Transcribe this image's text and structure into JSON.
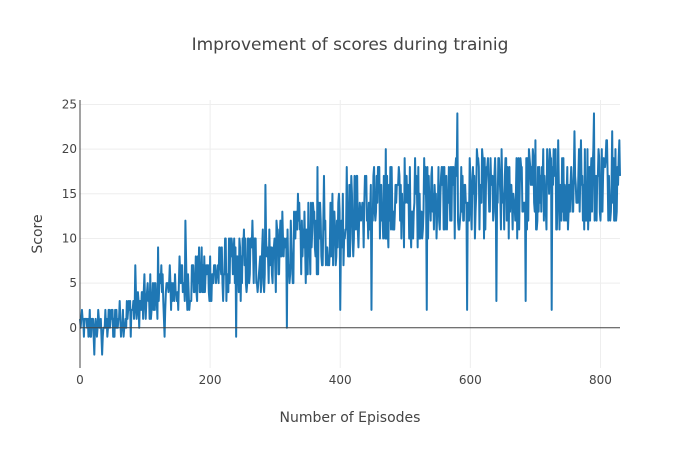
{
  "chart_data": {
    "type": "line",
    "title": "Improvement of scores during trainig",
    "xlabel": "Number of Episodes",
    "ylabel": "Score",
    "xlim": [
      0,
      830
    ],
    "ylim": [
      -4.5,
      25.5
    ],
    "x_ticks": [
      0,
      200,
      400,
      600,
      800
    ],
    "y_ticks": [
      0,
      5,
      10,
      15,
      20,
      25
    ],
    "grid": true,
    "zero_line": true,
    "series": [
      {
        "name": "score",
        "color": "#1f77b4",
        "anchors": [
          [
            0,
            0.3
          ],
          [
            25,
            0.1
          ],
          [
            50,
            0.6
          ],
          [
            75,
            1.6
          ],
          [
            100,
            2.8
          ],
          [
            125,
            3.7
          ],
          [
            150,
            4.6
          ],
          [
            175,
            5.4
          ],
          [
            200,
            5.9
          ],
          [
            225,
            6.4
          ],
          [
            250,
            7.0
          ],
          [
            275,
            7.6
          ],
          [
            300,
            8.1
          ],
          [
            325,
            8.9
          ],
          [
            350,
            9.6
          ],
          [
            375,
            10.8
          ],
          [
            400,
            11.9
          ],
          [
            425,
            12.8
          ],
          [
            450,
            13.4
          ],
          [
            475,
            13.9
          ],
          [
            500,
            14.1
          ],
          [
            525,
            14.3
          ],
          [
            550,
            14.4
          ],
          [
            575,
            14.5
          ],
          [
            600,
            14.6
          ],
          [
            625,
            14.7
          ],
          [
            650,
            14.8
          ],
          [
            675,
            15.0
          ],
          [
            700,
            15.2
          ],
          [
            725,
            15.5
          ],
          [
            750,
            15.8
          ],
          [
            775,
            16.1
          ],
          [
            800,
            16.5
          ],
          [
            830,
            17.0
          ]
        ],
        "noise_amplitude": [
          [
            0,
            1.3
          ],
          [
            100,
            2.8
          ],
          [
            200,
            3.6
          ],
          [
            300,
            4.3
          ],
          [
            400,
            4.8
          ],
          [
            830,
            5.2
          ]
        ],
        "peaks": [
          [
            15,
            2
          ],
          [
            22,
            -3
          ],
          [
            34,
            -3
          ],
          [
            50,
            2
          ],
          [
            85,
            7
          ],
          [
            120,
            9
          ],
          [
            130,
            -1
          ],
          [
            162,
            12
          ],
          [
            240,
            -1
          ],
          [
            265,
            12
          ],
          [
            285,
            16
          ],
          [
            318,
            0
          ],
          [
            335,
            15
          ],
          [
            365,
            18
          ],
          [
            375,
            17
          ],
          [
            395,
            12
          ],
          [
            400,
            2
          ],
          [
            410,
            18
          ],
          [
            425,
            17
          ],
          [
            448,
            2
          ],
          [
            470,
            20
          ],
          [
            515,
            19
          ],
          [
            533,
            2
          ],
          [
            580,
            24
          ],
          [
            595,
            2
          ],
          [
            612,
            19
          ],
          [
            625,
            18
          ],
          [
            640,
            3
          ],
          [
            660,
            18
          ],
          [
            685,
            3
          ],
          [
            690,
            20
          ],
          [
            700,
            21
          ],
          [
            725,
            2
          ],
          [
            735,
            21
          ],
          [
            760,
            22
          ],
          [
            790,
            24
          ],
          [
            810,
            21
          ],
          [
            818,
            22
          ],
          [
            823,
            20
          ]
        ]
      }
    ]
  }
}
